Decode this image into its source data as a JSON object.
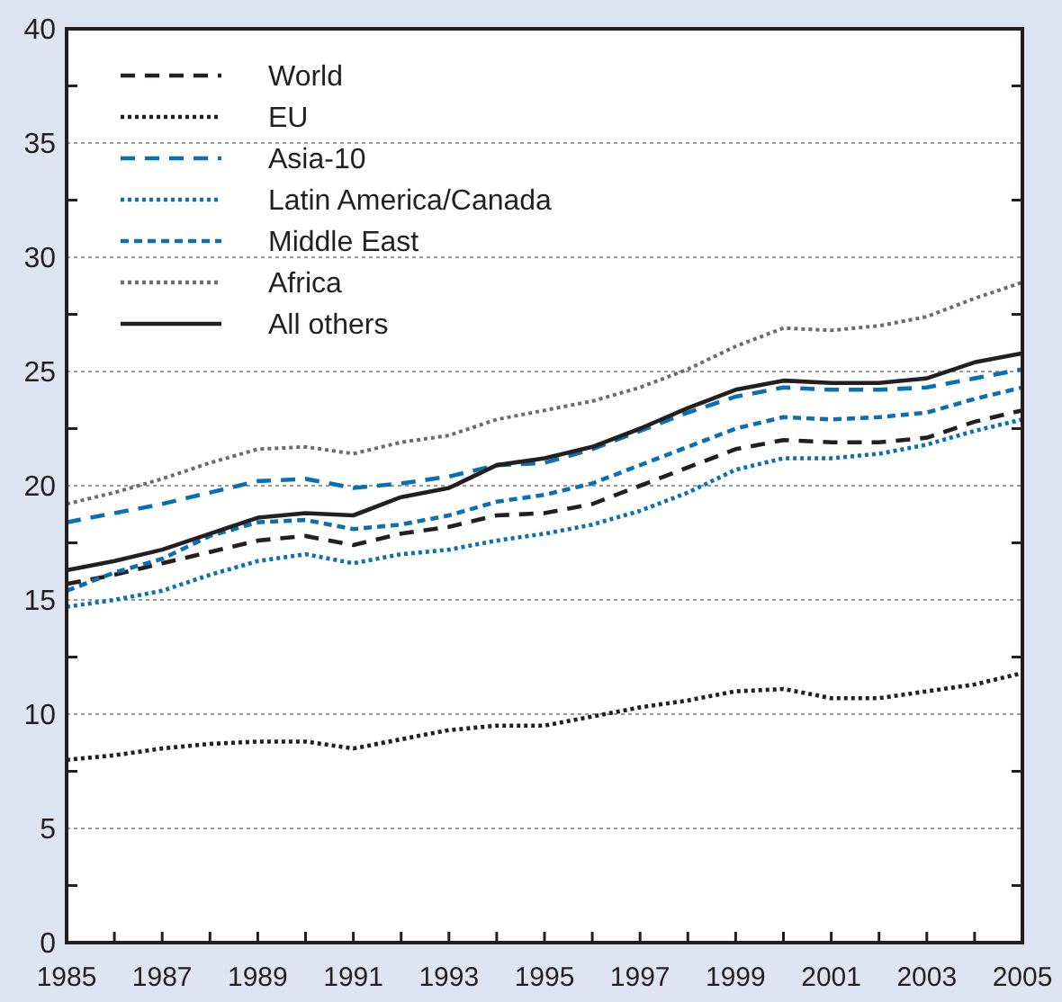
{
  "chart_data": {
    "type": "line",
    "x": [
      1985,
      1986,
      1987,
      1988,
      1989,
      1990,
      1991,
      1992,
      1993,
      1994,
      1995,
      1996,
      1997,
      1998,
      1999,
      2000,
      2001,
      2002,
      2003,
      2004,
      2005
    ],
    "series": [
      {
        "name": "World",
        "color": "#231f20",
        "line_style": "dashed",
        "values": [
          15.7,
          16.1,
          16.6,
          17.1,
          17.6,
          17.8,
          17.4,
          17.9,
          18.2,
          18.7,
          18.8,
          19.2,
          20.0,
          20.8,
          21.6,
          22.0,
          21.9,
          21.9,
          22.1,
          22.8,
          23.3
        ]
      },
      {
        "name": "EU",
        "color": "#231f20",
        "line_style": "dotted",
        "values": [
          8.0,
          8.2,
          8.5,
          8.7,
          8.8,
          8.8,
          8.5,
          8.9,
          9.3,
          9.5,
          9.5,
          9.9,
          10.3,
          10.6,
          11.0,
          11.1,
          10.7,
          10.7,
          11.0,
          11.3,
          11.8
        ]
      },
      {
        "name": "Asia-10",
        "color": "#0b6fb4",
        "line_style": "dashed",
        "values": [
          18.4,
          18.8,
          19.2,
          19.7,
          20.2,
          20.3,
          19.9,
          20.1,
          20.4,
          20.9,
          21.0,
          21.6,
          22.4,
          23.2,
          23.9,
          24.3,
          24.2,
          24.2,
          24.3,
          24.7,
          25.1
        ]
      },
      {
        "name": "Latin America/Canada",
        "color": "#0b6fb4",
        "line_style": "dotted",
        "values": [
          14.7,
          15.0,
          15.4,
          16.1,
          16.7,
          17.0,
          16.6,
          17.0,
          17.2,
          17.6,
          17.9,
          18.3,
          18.9,
          19.7,
          20.7,
          21.2,
          21.2,
          21.4,
          21.8,
          22.4,
          22.9
        ]
      },
      {
        "name": "Middle East",
        "color": "#0b6fb4",
        "line_style": "dashed",
        "values": [
          15.4,
          16.2,
          16.8,
          17.8,
          18.4,
          18.5,
          18.1,
          18.3,
          18.7,
          19.3,
          19.6,
          20.1,
          20.9,
          21.7,
          22.5,
          23.0,
          22.9,
          23.0,
          23.2,
          23.8,
          24.3
        ]
      },
      {
        "name": "Africa",
        "color": "#6d6b6c",
        "line_style": "dotted",
        "values": [
          19.2,
          19.7,
          20.3,
          21.0,
          21.6,
          21.7,
          21.4,
          21.9,
          22.2,
          22.9,
          23.3,
          23.7,
          24.3,
          25.1,
          26.1,
          26.9,
          26.8,
          27.0,
          27.4,
          28.2,
          28.9
        ]
      },
      {
        "name": "All others",
        "color": "#231f20",
        "line_style": "solid",
        "values": [
          16.3,
          16.7,
          17.2,
          17.9,
          18.6,
          18.8,
          18.7,
          19.5,
          19.9,
          20.9,
          21.2,
          21.7,
          22.5,
          23.4,
          24.2,
          24.6,
          24.5,
          24.5,
          24.7,
          25.4,
          25.8
        ]
      }
    ],
    "xlim": [
      1985,
      2005
    ],
    "xticks": [
      1985,
      {
        "value": 1986,
        "label": null
      },
      1987,
      {
        "value": 1988,
        "label": null
      },
      1989,
      {
        "value": 1990,
        "label": null
      },
      1991,
      {
        "value": 1992,
        "label": null
      },
      1993,
      {
        "value": 1994,
        "label": null
      },
      1995,
      {
        "value": 1996,
        "label": null
      },
      1997,
      {
        "value": 1998,
        "label": null
      },
      1999,
      {
        "value": 2000,
        "label": null
      },
      2001,
      {
        "value": 2002,
        "label": null
      },
      2003,
      {
        "value": 2004,
        "label": null
      },
      2005
    ],
    "ylim": [
      0,
      40
    ],
    "yticks": [
      0,
      5,
      10,
      15,
      20,
      25,
      30,
      35,
      40
    ],
    "grid": "y",
    "legend": "top left"
  }
}
